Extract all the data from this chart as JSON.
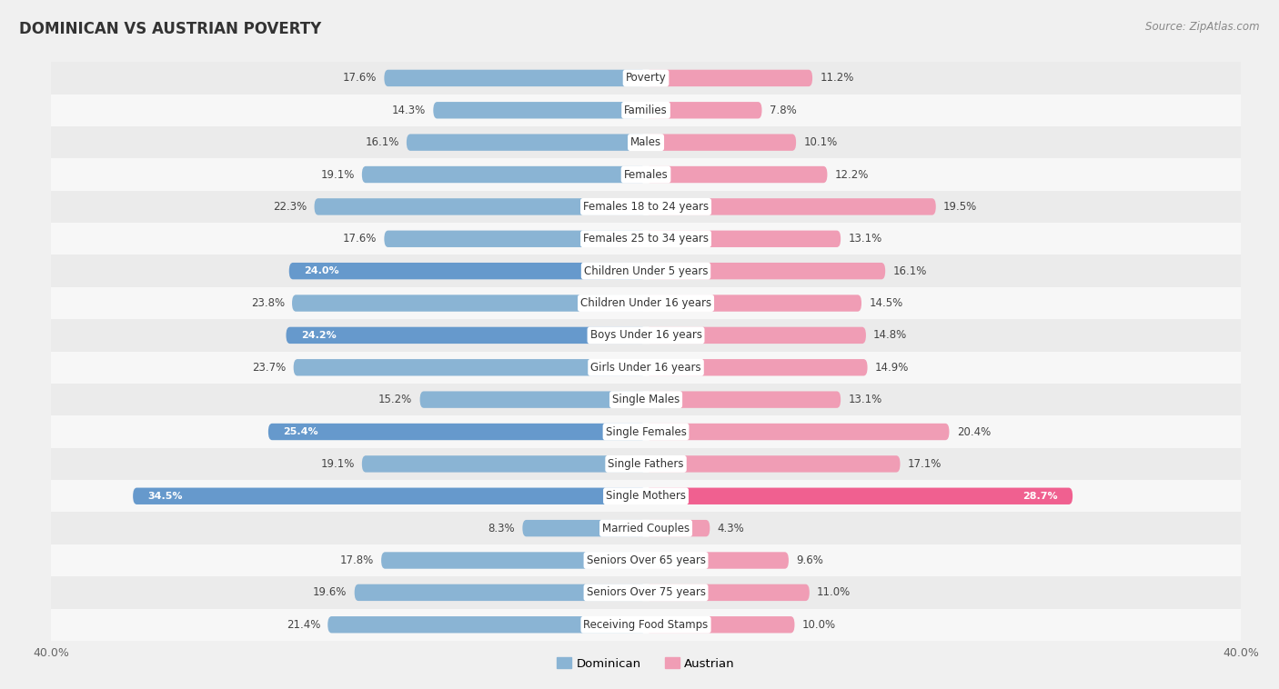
{
  "title": "DOMINICAN VS AUSTRIAN POVERTY",
  "source": "Source: ZipAtlas.com",
  "categories": [
    "Poverty",
    "Families",
    "Males",
    "Females",
    "Females 18 to 24 years",
    "Females 25 to 34 years",
    "Children Under 5 years",
    "Children Under 16 years",
    "Boys Under 16 years",
    "Girls Under 16 years",
    "Single Males",
    "Single Females",
    "Single Fathers",
    "Single Mothers",
    "Married Couples",
    "Seniors Over 65 years",
    "Seniors Over 75 years",
    "Receiving Food Stamps"
  ],
  "dominican": [
    17.6,
    14.3,
    16.1,
    19.1,
    22.3,
    17.6,
    24.0,
    23.8,
    24.2,
    23.7,
    15.2,
    25.4,
    19.1,
    34.5,
    8.3,
    17.8,
    19.6,
    21.4
  ],
  "austrian": [
    11.2,
    7.8,
    10.1,
    12.2,
    19.5,
    13.1,
    16.1,
    14.5,
    14.8,
    14.9,
    13.1,
    20.4,
    17.1,
    28.7,
    4.3,
    9.6,
    11.0,
    10.0
  ],
  "dominican_color": "#8ab4d4",
  "austrian_color": "#f09db5",
  "dominican_highlight_color": "#6699cc",
  "austrian_highlight_color": "#f06090",
  "row_color_odd": "#ebebeb",
  "row_color_even": "#f7f7f7",
  "background_color": "#f0f0f0",
  "axis_max": 40.0,
  "bar_height": 0.52,
  "legend_labels": [
    "Dominican",
    "Austrian"
  ],
  "label_inside_rows": [
    6,
    8,
    11,
    13
  ],
  "label_inside_austrian_rows": [
    13
  ]
}
